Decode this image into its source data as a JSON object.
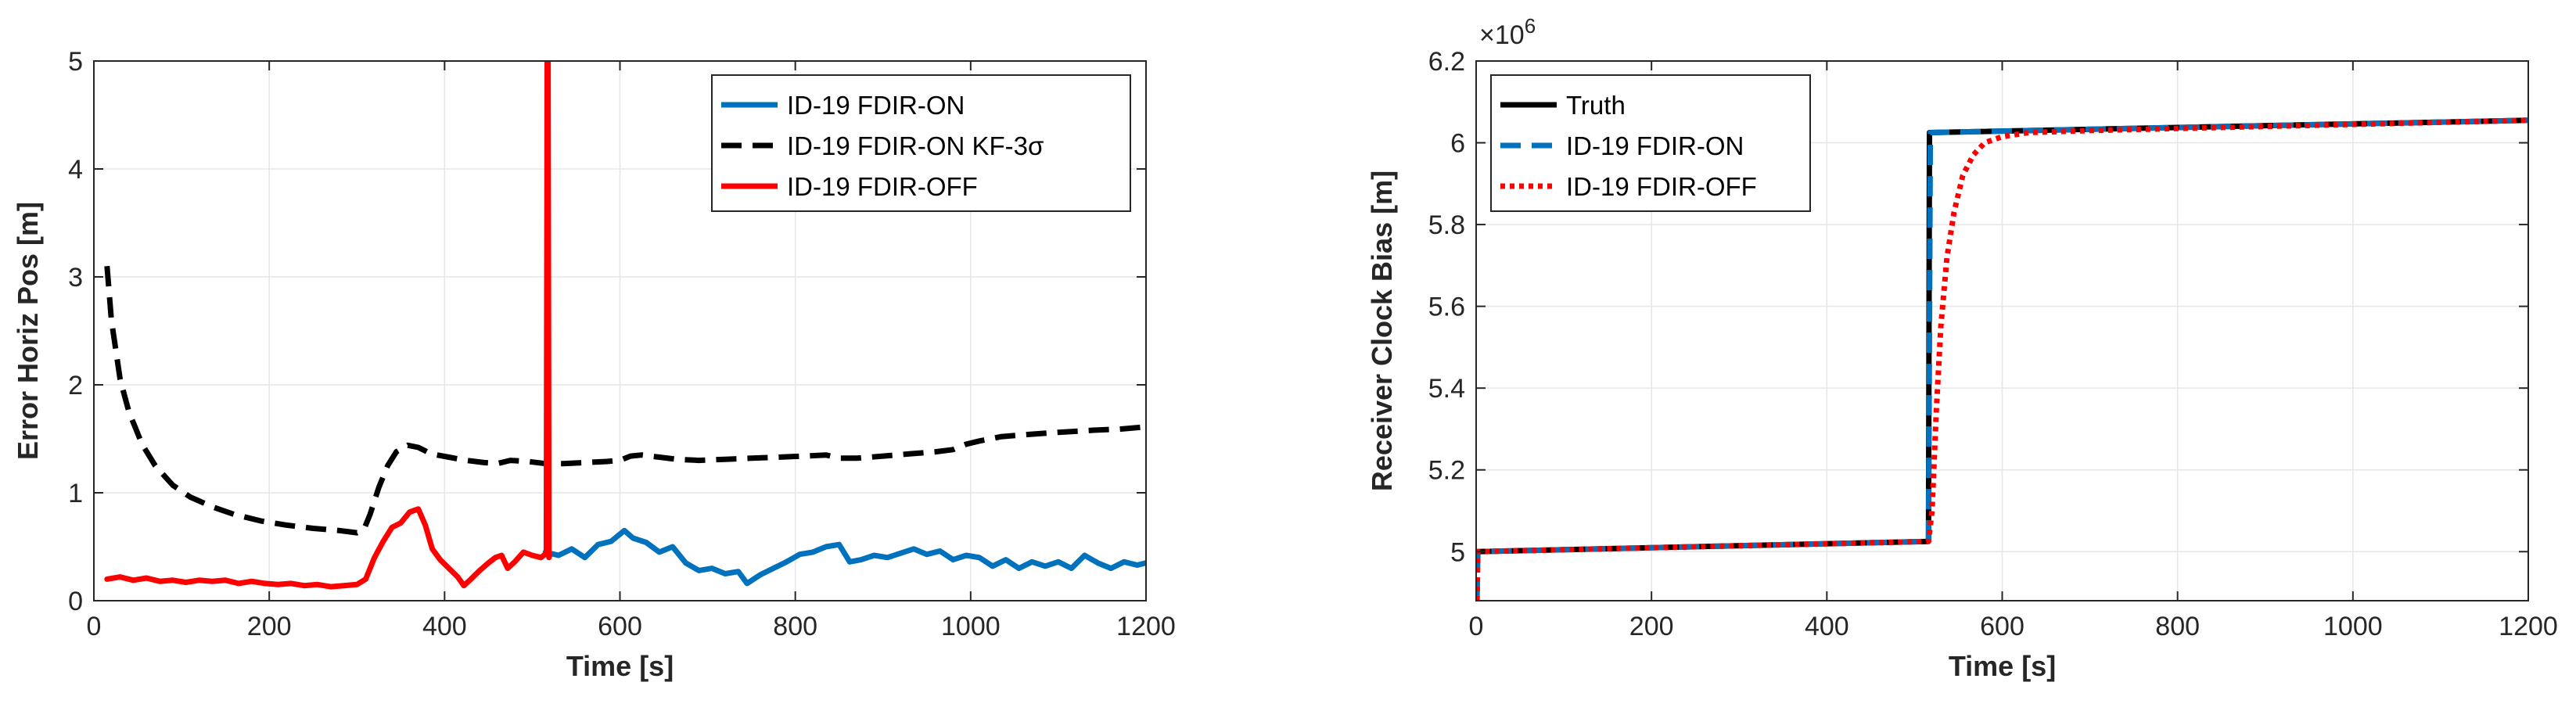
{
  "colors": {
    "blue": "#0072BD",
    "black": "#000000",
    "red": "#FF0000",
    "grid": "#E6E6E6",
    "axis": "#262626"
  },
  "chart_data": [
    {
      "type": "line",
      "title": "",
      "xlabel": "Time [s]",
      "ylabel": "Error Horiz Pos [m]",
      "xlim": [
        0,
        1200
      ],
      "ylim": [
        0,
        5
      ],
      "xticks": [
        0,
        200,
        400,
        600,
        800,
        1000,
        1200
      ],
      "yticks": [
        0,
        1,
        2,
        3,
        4,
        5
      ],
      "xtick_labels": [
        "0",
        "200",
        "400",
        "600",
        "800",
        "1000",
        "1200"
      ],
      "ytick_labels": [
        "0",
        "1",
        "2",
        "3",
        "4",
        "5"
      ],
      "grid": true,
      "legend_position": "top-right",
      "legend": [
        {
          "label": "ID-19 FDIR-ON",
          "style": "solid",
          "color": "#0072BD"
        },
        {
          "label": "ID-19 FDIR-ON KF-3σ",
          "style": "dashed",
          "color": "#000000"
        },
        {
          "label": "ID-19 FDIR-OFF",
          "style": "solid",
          "color": "#FF0000"
        }
      ],
      "series": [
        {
          "name": "ID-19 FDIR-ON",
          "color": "#0072BD",
          "style": "solid",
          "points": [
            [
              515,
              0.45
            ],
            [
              530,
              0.42
            ],
            [
              545,
              0.48
            ],
            [
              560,
              0.4
            ],
            [
              575,
              0.52
            ],
            [
              590,
              0.55
            ],
            [
              605,
              0.65
            ],
            [
              615,
              0.58
            ],
            [
              630,
              0.54
            ],
            [
              645,
              0.45
            ],
            [
              660,
              0.5
            ],
            [
              675,
              0.35
            ],
            [
              690,
              0.28
            ],
            [
              705,
              0.3
            ],
            [
              720,
              0.25
            ],
            [
              735,
              0.27
            ],
            [
              745,
              0.16
            ],
            [
              760,
              0.24
            ],
            [
              775,
              0.3
            ],
            [
              790,
              0.36
            ],
            [
              805,
              0.43
            ],
            [
              820,
              0.45
            ],
            [
              835,
              0.5
            ],
            [
              850,
              0.52
            ],
            [
              862,
              0.36
            ],
            [
              875,
              0.38
            ],
            [
              890,
              0.42
            ],
            [
              905,
              0.4
            ],
            [
              920,
              0.44
            ],
            [
              935,
              0.48
            ],
            [
              950,
              0.43
            ],
            [
              965,
              0.46
            ],
            [
              980,
              0.38
            ],
            [
              995,
              0.42
            ],
            [
              1010,
              0.4
            ],
            [
              1025,
              0.32
            ],
            [
              1040,
              0.38
            ],
            [
              1055,
              0.3
            ],
            [
              1070,
              0.36
            ],
            [
              1085,
              0.32
            ],
            [
              1100,
              0.36
            ],
            [
              1115,
              0.3
            ],
            [
              1130,
              0.42
            ],
            [
              1145,
              0.35
            ],
            [
              1160,
              0.3
            ],
            [
              1175,
              0.36
            ],
            [
              1190,
              0.33
            ],
            [
              1200,
              0.35
            ]
          ]
        },
        {
          "name": "ID-19 FDIR-ON KF-3σ",
          "color": "#000000",
          "style": "dashed",
          "points": [
            [
              15,
              3.1
            ],
            [
              20,
              2.6
            ],
            [
              30,
              2.05
            ],
            [
              40,
              1.75
            ],
            [
              55,
              1.45
            ],
            [
              70,
              1.25
            ],
            [
              90,
              1.07
            ],
            [
              110,
              0.96
            ],
            [
              135,
              0.87
            ],
            [
              160,
              0.8
            ],
            [
              190,
              0.74
            ],
            [
              220,
              0.7
            ],
            [
              250,
              0.67
            ],
            [
              280,
              0.65
            ],
            [
              300,
              0.63
            ],
            [
              308,
              0.66
            ],
            [
              315,
              0.8
            ],
            [
              325,
              1.05
            ],
            [
              335,
              1.25
            ],
            [
              345,
              1.38
            ],
            [
              358,
              1.44
            ],
            [
              370,
              1.42
            ],
            [
              385,
              1.36
            ],
            [
              405,
              1.33
            ],
            [
              425,
              1.3
            ],
            [
              445,
              1.28
            ],
            [
              460,
              1.27
            ],
            [
              475,
              1.3
            ],
            [
              495,
              1.29
            ],
            [
              515,
              1.27
            ],
            [
              535,
              1.27
            ],
            [
              560,
              1.28
            ],
            [
              585,
              1.29
            ],
            [
              600,
              1.3
            ],
            [
              612,
              1.34
            ],
            [
              625,
              1.35
            ],
            [
              645,
              1.33
            ],
            [
              665,
              1.31
            ],
            [
              690,
              1.3
            ],
            [
              720,
              1.31
            ],
            [
              750,
              1.32
            ],
            [
              780,
              1.33
            ],
            [
              810,
              1.34
            ],
            [
              835,
              1.35
            ],
            [
              850,
              1.32
            ],
            [
              870,
              1.32
            ],
            [
              900,
              1.34
            ],
            [
              930,
              1.36
            ],
            [
              960,
              1.38
            ],
            [
              980,
              1.4
            ],
            [
              995,
              1.45
            ],
            [
              1010,
              1.48
            ],
            [
              1035,
              1.52
            ],
            [
              1065,
              1.54
            ],
            [
              1100,
              1.56
            ],
            [
              1140,
              1.58
            ],
            [
              1170,
              1.59
            ],
            [
              1200,
              1.61
            ]
          ]
        },
        {
          "name": "ID-19 FDIR-OFF",
          "color": "#FF0000",
          "style": "solid",
          "points": [
            [
              15,
              0.2
            ],
            [
              30,
              0.22
            ],
            [
              45,
              0.19
            ],
            [
              60,
              0.21
            ],
            [
              75,
              0.18
            ],
            [
              90,
              0.19
            ],
            [
              105,
              0.17
            ],
            [
              120,
              0.19
            ],
            [
              135,
              0.18
            ],
            [
              150,
              0.19
            ],
            [
              165,
              0.16
            ],
            [
              180,
              0.18
            ],
            [
              195,
              0.16
            ],
            [
              210,
              0.15
            ],
            [
              225,
              0.16
            ],
            [
              240,
              0.14
            ],
            [
              255,
              0.15
            ],
            [
              270,
              0.13
            ],
            [
              285,
              0.14
            ],
            [
              300,
              0.15
            ],
            [
              310,
              0.2
            ],
            [
              320,
              0.4
            ],
            [
              330,
              0.55
            ],
            [
              340,
              0.68
            ],
            [
              350,
              0.72
            ],
            [
              360,
              0.82
            ],
            [
              370,
              0.85
            ],
            [
              378,
              0.7
            ],
            [
              386,
              0.48
            ],
            [
              395,
              0.38
            ],
            [
              405,
              0.3
            ],
            [
              415,
              0.22
            ],
            [
              422,
              0.14
            ],
            [
              430,
              0.2
            ],
            [
              440,
              0.28
            ],
            [
              450,
              0.35
            ],
            [
              458,
              0.4
            ],
            [
              465,
              0.42
            ],
            [
              472,
              0.3
            ],
            [
              480,
              0.36
            ],
            [
              490,
              0.45
            ],
            [
              500,
              0.42
            ],
            [
              510,
              0.4
            ],
            [
              516,
              0.44
            ],
            [
              517,
              5.0
            ],
            [
              518,
              5.0
            ],
            [
              519,
              0.4
            ],
            [
              520,
              0.42
            ]
          ]
        }
      ]
    },
    {
      "type": "line",
      "title": "",
      "xlabel": "Time [s]",
      "ylabel": "Receiver Clock Bias [m]",
      "axis_exponent": "×10",
      "axis_exponent_power": "6",
      "xlim": [
        0,
        1200
      ],
      "ylim": [
        4.88,
        6.2
      ],
      "xticks": [
        0,
        200,
        400,
        600,
        800,
        1000,
        1200
      ],
      "yticks": [
        5.0,
        5.2,
        5.4,
        5.6,
        5.8,
        6.0,
        6.2
      ],
      "xtick_labels": [
        "0",
        "200",
        "400",
        "600",
        "800",
        "1000",
        "1200"
      ],
      "ytick_labels": [
        "5",
        "5.2",
        "5.4",
        "5.6",
        "5.8",
        "6",
        "6.2"
      ],
      "grid": true,
      "legend_position": "top-left",
      "legend": [
        {
          "label": "Truth",
          "style": "solid",
          "color": "#000000"
        },
        {
          "label": "ID-19 FDIR-ON",
          "style": "dashed",
          "color": "#0072BD"
        },
        {
          "label": "ID-19 FDIR-OFF",
          "style": "dotted",
          "color": "#FF0000"
        }
      ],
      "series": [
        {
          "name": "Truth",
          "color": "#000000",
          "style": "solid",
          "points": [
            [
              0,
              5.0
            ],
            [
              516,
              5.025
            ],
            [
              517,
              6.025
            ],
            [
              1200,
              6.055
            ]
          ]
        },
        {
          "name": "ID-19 FDIR-ON",
          "color": "#0072BD",
          "style": "dashed",
          "points": [
            [
              1,
              4.88
            ],
            [
              2,
              5.0
            ],
            [
              516,
              5.025
            ],
            [
              518,
              6.025
            ],
            [
              1200,
              6.055
            ]
          ]
        },
        {
          "name": "ID-19 FDIR-OFF",
          "color": "#FF0000",
          "style": "dotted",
          "points": [
            [
              1,
              4.88
            ],
            [
              2,
              5.0
            ],
            [
              516,
              5.025
            ],
            [
              520,
              5.1
            ],
            [
              525,
              5.35
            ],
            [
              530,
              5.55
            ],
            [
              537,
              5.72
            ],
            [
              545,
              5.83
            ],
            [
              555,
              5.92
            ],
            [
              567,
              5.97
            ],
            [
              580,
              6.0
            ],
            [
              600,
              6.015
            ],
            [
              630,
              6.025
            ],
            [
              700,
              6.03
            ],
            [
              1200,
              6.055
            ]
          ]
        }
      ]
    }
  ]
}
